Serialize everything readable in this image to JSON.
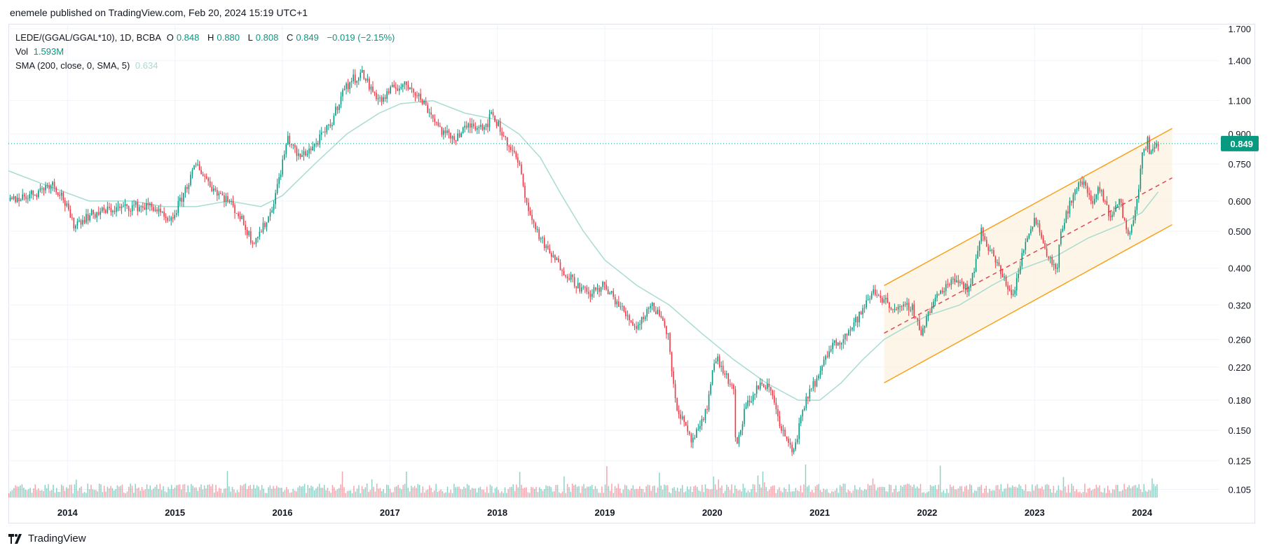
{
  "header": {
    "published": "enemele published on TradingView.com, Feb 20, 2024 15:19 UTC+1"
  },
  "legend": {
    "symbol": "LEDE/(GGAL/GGAL*10), 1D, BCBA",
    "o_label": "O",
    "o_value": "0.848",
    "h_label": "H",
    "h_value": "0.880",
    "l_label": "L",
    "l_value": "0.808",
    "c_label": "C",
    "c_value": "0.849",
    "change": "−0.019 (−2.15%)",
    "vol_label": "Vol",
    "vol_value": "1.593M",
    "sma_label": "SMA (200, close, 0, SMA, 5)",
    "sma_value": "0.634"
  },
  "footer": {
    "brand": "TradingView"
  },
  "colors": {
    "up": "#089981",
    "down": "#f23645",
    "sma": "#a8dcd2",
    "channel": "#f7a21b",
    "channel_fill": "#fdf3e1",
    "midline": "#e0465a",
    "grid": "#f0f3fa"
  },
  "chart_data": {
    "type": "line",
    "title": "LEDE/(GGAL/GGAL*10), 1D, BCBA",
    "yscale": "log",
    "ylim": [
      0.1,
      1.75
    ],
    "ytick_labels": [
      "1.700",
      "1.400",
      "1.100",
      "0.900",
      "0.750",
      "0.600",
      "0.500",
      "0.400",
      "0.320",
      "0.260",
      "0.220",
      "0.180",
      "0.150",
      "0.125",
      "0.105"
    ],
    "ytick_values": [
      1.7,
      1.4,
      1.1,
      0.9,
      0.75,
      0.6,
      0.5,
      0.4,
      0.32,
      0.26,
      0.22,
      0.18,
      0.15,
      0.125,
      0.105
    ],
    "xlim": [
      2013.45,
      2024.72
    ],
    "xtick_labels": [
      "2014",
      "2015",
      "2016",
      "2017",
      "2018",
      "2019",
      "2020",
      "2021",
      "2022",
      "2023",
      "2024"
    ],
    "xtick_values": [
      2014,
      2015,
      2016,
      2017,
      2018,
      2019,
      2020,
      2021,
      2022,
      2023,
      2024
    ],
    "last_price": 0.849,
    "last_price_label": "0.849",
    "series": [
      {
        "name": "Price (close)",
        "x": [
          2013.45,
          2013.7,
          2013.85,
          2013.95,
          2014.05,
          2014.2,
          2014.4,
          2014.6,
          2014.8,
          2014.95,
          2015.05,
          2015.2,
          2015.35,
          2015.5,
          2015.6,
          2015.72,
          2015.8,
          2015.88,
          2015.95,
          2016.05,
          2016.15,
          2016.3,
          2016.45,
          2016.55,
          2016.65,
          2016.75,
          2016.82,
          2016.92,
          2017.05,
          2017.2,
          2017.35,
          2017.5,
          2017.6,
          2017.75,
          2017.9,
          2017.95,
          2018.05,
          2018.2,
          2018.3,
          2018.45,
          2018.6,
          2018.75,
          2018.85,
          2018.98,
          2019.1,
          2019.2,
          2019.3,
          2019.42,
          2019.48,
          2019.55,
          2019.6,
          2019.65,
          2019.72,
          2019.8,
          2019.88,
          2019.95,
          2020.0,
          2020.05,
          2020.12,
          2020.2,
          2020.22,
          2020.3,
          2020.45,
          2020.55,
          2020.65,
          2020.75,
          2020.8,
          2020.9,
          2021.0,
          2021.1,
          2021.2,
          2021.3,
          2021.4,
          2021.5,
          2021.55,
          2021.65,
          2021.75,
          2021.85,
          2021.95,
          2022.0,
          2022.1,
          2022.25,
          2022.4,
          2022.5,
          2022.6,
          2022.7,
          2022.8,
          2022.9,
          2023.0,
          2023.1,
          2023.2,
          2023.25,
          2023.35,
          2023.45,
          2023.55,
          2023.6,
          2023.7,
          2023.8,
          2023.85,
          2023.9,
          2023.95,
          2024.0,
          2024.05,
          2024.08,
          2024.12,
          2024.15
        ],
        "y": [
          0.6,
          0.63,
          0.67,
          0.62,
          0.52,
          0.55,
          0.57,
          0.58,
          0.58,
          0.52,
          0.6,
          0.75,
          0.65,
          0.6,
          0.55,
          0.47,
          0.5,
          0.55,
          0.65,
          0.88,
          0.78,
          0.84,
          0.95,
          1.15,
          1.25,
          1.3,
          1.18,
          1.1,
          1.2,
          1.2,
          1.05,
          0.9,
          0.88,
          0.95,
          0.95,
          1.02,
          0.9,
          0.75,
          0.55,
          0.45,
          0.4,
          0.36,
          0.34,
          0.36,
          0.33,
          0.3,
          0.28,
          0.32,
          0.31,
          0.29,
          0.26,
          0.18,
          0.16,
          0.14,
          0.15,
          0.17,
          0.22,
          0.23,
          0.21,
          0.19,
          0.13,
          0.17,
          0.2,
          0.19,
          0.15,
          0.13,
          0.15,
          0.19,
          0.21,
          0.25,
          0.26,
          0.28,
          0.31,
          0.35,
          0.34,
          0.32,
          0.31,
          0.32,
          0.27,
          0.3,
          0.34,
          0.38,
          0.35,
          0.5,
          0.44,
          0.38,
          0.34,
          0.45,
          0.55,
          0.45,
          0.39,
          0.5,
          0.62,
          0.68,
          0.58,
          0.65,
          0.55,
          0.6,
          0.5,
          0.5,
          0.6,
          0.78,
          0.87,
          0.78,
          0.85,
          0.849
        ]
      },
      {
        "name": "SMA (200, close, 0, SMA, 5)",
        "x": [
          2013.45,
          2013.8,
          2014.2,
          2014.6,
          2014.9,
          2015.2,
          2015.5,
          2015.8,
          2016.0,
          2016.3,
          2016.6,
          2016.9,
          2017.1,
          2017.4,
          2017.7,
          2018.0,
          2018.2,
          2018.4,
          2018.6,
          2018.8,
          2019.0,
          2019.3,
          2019.6,
          2019.9,
          2020.2,
          2020.5,
          2020.8,
          2021.0,
          2021.2,
          2021.4,
          2021.6,
          2021.8,
          2022.0,
          2022.3,
          2022.6,
          2022.9,
          2023.2,
          2023.5,
          2023.8,
          2024.0,
          2024.15
        ],
        "y": [
          0.72,
          0.66,
          0.6,
          0.6,
          0.58,
          0.58,
          0.6,
          0.58,
          0.62,
          0.75,
          0.9,
          1.02,
          1.08,
          1.1,
          1.02,
          0.98,
          0.9,
          0.78,
          0.62,
          0.5,
          0.42,
          0.36,
          0.32,
          0.27,
          0.23,
          0.2,
          0.18,
          0.18,
          0.2,
          0.23,
          0.26,
          0.28,
          0.3,
          0.32,
          0.36,
          0.4,
          0.43,
          0.48,
          0.52,
          0.56,
          0.634
        ]
      }
    ],
    "channel": {
      "x": [
        2021.6,
        2024.28
      ],
      "upper": [
        0.36,
        0.93
      ],
      "lower": [
        0.2,
        0.52
      ],
      "mid": [
        0.27,
        0.69
      ]
    }
  }
}
